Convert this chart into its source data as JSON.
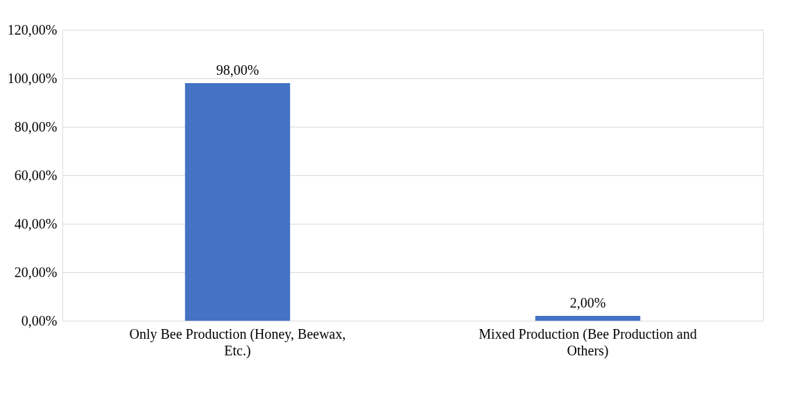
{
  "chart_data": {
    "type": "bar",
    "categories": [
      "Only Bee Production (Honey, Beewax, Etc.)",
      "Mixed Production (Bee Production and Others)"
    ],
    "values": [
      98,
      2
    ],
    "color": "#4472c4",
    "value_labels": [
      "98,00%",
      "2,00%"
    ],
    "ylim": [
      0,
      120
    ],
    "yticks": [
      {
        "value": 0,
        "label": "0,00%"
      },
      {
        "value": 20,
        "label": "20,00%"
      },
      {
        "value": 40,
        "label": "40,00%"
      },
      {
        "value": 60,
        "label": "60,00%"
      },
      {
        "value": 80,
        "label": "80,00%"
      },
      {
        "value": 100,
        "label": "100,00%"
      },
      {
        "value": 120,
        "label": "120,00%"
      }
    ],
    "grid": "y"
  }
}
